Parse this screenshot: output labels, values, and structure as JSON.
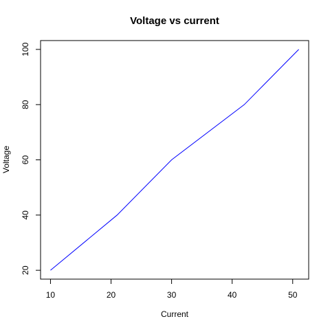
{
  "chart_data": {
    "type": "line",
    "title": "Voltage vs current",
    "xlabel": "Current",
    "ylabel": "Voltage",
    "x": [
      10,
      21,
      30,
      42,
      51
    ],
    "series": [
      {
        "values": [
          20,
          40,
          60,
          80,
          100
        ],
        "color": "#0000ff"
      }
    ],
    "xlim": [
      8.36,
      52.64
    ],
    "ylim": [
      16.8,
      103.2
    ],
    "x_ticks": [
      10,
      20,
      30,
      40,
      50
    ],
    "y_ticks": [
      20,
      40,
      60,
      80,
      100
    ],
    "x_tick_labels": [
      "10",
      "20",
      "30",
      "40",
      "50"
    ],
    "y_tick_labels": [
      "20",
      "40",
      "60",
      "80",
      "100"
    ],
    "grid": false,
    "legend": "none"
  }
}
